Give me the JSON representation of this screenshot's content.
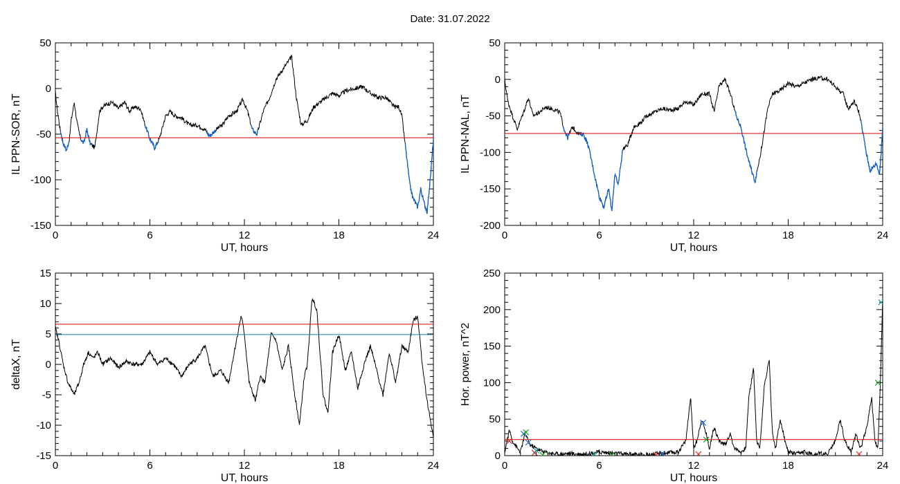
{
  "page": {
    "date_label": "Date:",
    "date_value": "31.07.2022"
  },
  "colors": {
    "threshold": "#d40000",
    "threshold2": "#1e7fa0",
    "dip": "#1060c8",
    "line": "#000000",
    "marker_red": "#e02020",
    "marker_blue": "#1e6fd0",
    "marker_green": "#20a020",
    "marker_cyan": "#20a0a0"
  },
  "chart_data": [
    {
      "id": "sor",
      "type": "line",
      "xlabel": "UT, hours",
      "ylabel": "IL PPN-SOR, nT",
      "xlim": [
        0,
        24
      ],
      "ylim": [
        -150,
        50
      ],
      "xticks": [
        "0",
        "6",
        "12",
        "18",
        "24"
      ],
      "yticks": [
        "50",
        "0",
        "-50",
        "-100",
        "-150"
      ],
      "threshold": -54,
      "x": [
        0,
        0.1,
        0.3,
        0.5,
        0.7,
        0.9,
        1.0,
        1.2,
        1.4,
        1.6,
        1.8,
        2.0,
        2.2,
        2.5,
        2.8,
        3.0,
        3.3,
        3.6,
        4.0,
        4.4,
        4.7,
        5.0,
        5.4,
        5.7,
        6.0,
        6.3,
        6.6,
        7.0,
        7.3,
        7.6,
        8.0,
        8.5,
        9.0,
        9.5,
        9.8,
        10.2,
        10.6,
        11.0,
        11.5,
        11.9,
        12.2,
        12.5,
        12.8,
        13.2,
        13.6,
        14.0,
        14.4,
        14.8,
        15.0,
        15.3,
        15.6,
        16.0,
        16.4,
        16.8,
        17.2,
        17.6,
        18.0,
        18.5,
        19.0,
        19.5,
        20.0,
        20.5,
        21.0,
        21.5,
        21.8,
        22.0,
        22.3,
        22.5,
        22.7,
        23.0,
        23.2,
        23.4,
        23.6,
        23.8,
        24.0
      ],
      "y": [
        -5,
        -20,
        -45,
        -60,
        -68,
        -55,
        -35,
        -15,
        -40,
        -55,
        -60,
        -45,
        -60,
        -65,
        -25,
        -20,
        -17,
        -15,
        -22,
        -15,
        -25,
        -20,
        -22,
        -40,
        -55,
        -65,
        -55,
        -30,
        -25,
        -30,
        -32,
        -40,
        -40,
        -45,
        -52,
        -45,
        -40,
        -30,
        -25,
        -12,
        -25,
        -45,
        -50,
        -25,
        -10,
        10,
        20,
        30,
        35,
        -10,
        -40,
        -35,
        -20,
        -15,
        -10,
        -5,
        -8,
        -2,
        0,
        2,
        -5,
        -10,
        -10,
        -20,
        -20,
        -30,
        -75,
        -105,
        -120,
        -130,
        -110,
        -125,
        -135,
        -100,
        -55
      ],
      "dips": [
        [
          0.3,
          0.9
        ],
        [
          1.6,
          2.3
        ],
        [
          5.7,
          6.5
        ],
        [
          9.6,
          10.2
        ],
        [
          12.4,
          12.9
        ],
        [
          22.2,
          24.0
        ]
      ]
    },
    {
      "id": "nal",
      "type": "line",
      "xlabel": "UT, hours",
      "ylabel": "IL PPN-NAL, nT",
      "xlim": [
        0,
        24
      ],
      "ylim": [
        -200,
        50
      ],
      "xticks": [
        "0",
        "6",
        "12",
        "18",
        "24"
      ],
      "yticks": [
        "50",
        "0",
        "-50",
        "-100",
        "-150",
        "-200"
      ],
      "threshold": -74,
      "x": [
        0,
        0.2,
        0.5,
        0.8,
        1.2,
        1.5,
        1.8,
        2.2,
        2.6,
        3.0,
        3.5,
        3.8,
        4.0,
        4.3,
        4.7,
        5.0,
        5.3,
        5.6,
        6.0,
        6.3,
        6.6,
        6.8,
        7.0,
        7.2,
        7.5,
        7.8,
        8.2,
        8.6,
        9.0,
        9.5,
        10.0,
        10.5,
        11.0,
        11.5,
        12.0,
        12.5,
        13.0,
        13.3,
        13.6,
        14.0,
        14.4,
        14.7,
        15.0,
        15.3,
        15.6,
        15.9,
        16.3,
        16.7,
        17.0,
        17.5,
        18.0,
        18.5,
        19.0,
        19.5,
        20.0,
        20.5,
        21.0,
        21.5,
        21.8,
        22.2,
        22.5,
        22.8,
        23.0,
        23.2,
        23.4,
        23.6,
        23.8,
        24.0
      ],
      "y": [
        0,
        -30,
        -50,
        -68,
        -45,
        -25,
        -50,
        -45,
        -38,
        -40,
        -45,
        -70,
        -80,
        -65,
        -75,
        -75,
        -90,
        -120,
        -160,
        -175,
        -150,
        -180,
        -130,
        -145,
        -95,
        -90,
        -65,
        -60,
        -50,
        -45,
        -40,
        -42,
        -40,
        -30,
        -35,
        -20,
        -20,
        -45,
        -10,
        0,
        -25,
        -50,
        -65,
        -95,
        -120,
        -140,
        -95,
        -40,
        -20,
        -15,
        -5,
        -10,
        -5,
        0,
        2,
        0,
        -10,
        -20,
        -40,
        -30,
        -45,
        -80,
        -105,
        -125,
        -120,
        -115,
        -130,
        -65
      ],
      "dips": [
        [
          3.7,
          4.1
        ],
        [
          4.8,
          7.5
        ],
        [
          14.6,
          16.0
        ],
        [
          22.6,
          24.0
        ]
      ]
    },
    {
      "id": "deltax",
      "type": "line",
      "xlabel": "UT, hours",
      "ylabel": "deltaX, nT",
      "xlim": [
        0,
        24
      ],
      "ylim": [
        -15,
        15
      ],
      "xticks": [
        "0",
        "6",
        "12",
        "18",
        "24"
      ],
      "yticks": [
        "15",
        "10",
        "5",
        "0",
        "-5",
        "-10",
        "-15"
      ],
      "thresholds": [
        6.6,
        4.9
      ],
      "x": [
        0,
        0.2,
        0.5,
        0.8,
        1.2,
        1.5,
        1.8,
        2.1,
        2.4,
        2.7,
        3.0,
        3.5,
        4.0,
        4.5,
        5.0,
        5.5,
        6.0,
        6.5,
        7.0,
        7.5,
        8.0,
        8.5,
        9.0,
        9.5,
        10.0,
        10.5,
        11.0,
        11.5,
        11.8,
        12.0,
        12.3,
        12.7,
        13.0,
        13.3,
        13.7,
        14.0,
        14.4,
        14.8,
        15.2,
        15.5,
        15.8,
        16.0,
        16.3,
        16.6,
        17.0,
        17.3,
        17.6,
        18.0,
        18.4,
        18.8,
        19.2,
        19.6,
        20.0,
        20.4,
        20.8,
        21.2,
        21.6,
        22.0,
        22.4,
        22.7,
        23.0,
        23.3,
        23.6,
        24.0
      ],
      "y": [
        6,
        4,
        0,
        -3,
        -5,
        -3,
        0,
        2,
        1,
        2,
        0,
        1,
        -0.5,
        0.5,
        0,
        0,
        2,
        0,
        1,
        0,
        -2,
        0,
        1,
        3,
        -2,
        -1,
        -3,
        4,
        8,
        5,
        -3,
        -6,
        -2,
        -3,
        5,
        4,
        -1,
        3,
        -5,
        -10,
        -2,
        0,
        11,
        9,
        -5,
        -8,
        2,
        5,
        -1,
        2,
        -4,
        0,
        3,
        -1,
        -5,
        2,
        -3,
        3,
        2,
        7,
        8,
        0,
        -6,
        -12
      ]
    },
    {
      "id": "power",
      "type": "line",
      "xlabel": "UT, hours",
      "ylabel": "Hor. power, nT^2",
      "xlim": [
        0,
        24
      ],
      "ylim": [
        0,
        250
      ],
      "xticks": [
        "0",
        "6",
        "12",
        "18",
        "24"
      ],
      "yticks": [
        "250",
        "200",
        "150",
        "100",
        "50",
        "0"
      ],
      "threshold": 22,
      "x": [
        0,
        0.3,
        0.5,
        0.8,
        1.0,
        1.3,
        1.6,
        2.0,
        2.5,
        3.0,
        3.5,
        4.0,
        5.0,
        6.0,
        7.0,
        8.0,
        9.0,
        10.0,
        11.0,
        11.5,
        11.8,
        12.0,
        12.2,
        12.5,
        12.8,
        13.0,
        13.3,
        13.6,
        14.0,
        14.3,
        14.6,
        15.0,
        15.3,
        15.5,
        15.8,
        16.0,
        16.2,
        16.5,
        16.8,
        17.0,
        17.2,
        17.5,
        17.8,
        18.0,
        18.5,
        19.0,
        19.5,
        20.0,
        20.5,
        21.0,
        21.3,
        21.6,
        22.0,
        22.3,
        22.6,
        23.0,
        23.3,
        23.5,
        23.7,
        23.85,
        24.0
      ],
      "y": [
        5,
        35,
        20,
        10,
        5,
        30,
        15,
        10,
        5,
        3,
        2,
        3,
        2,
        5,
        3,
        2,
        1,
        3,
        5,
        20,
        80,
        10,
        20,
        50,
        30,
        10,
        40,
        20,
        15,
        30,
        10,
        5,
        10,
        80,
        120,
        20,
        10,
        100,
        130,
        30,
        10,
        50,
        20,
        5,
        2,
        5,
        2,
        3,
        2,
        20,
        50,
        20,
        5,
        30,
        10,
        40,
        80,
        20,
        10,
        100,
        215
      ],
      "markers": [
        {
          "x": 0.3,
          "y": 20,
          "c": "marker_red"
        },
        {
          "x": 1.2,
          "y": 30,
          "c": "marker_blue"
        },
        {
          "x": 1.35,
          "y": 32,
          "c": "marker_green"
        },
        {
          "x": 1.5,
          "y": 18,
          "c": "marker_blue"
        },
        {
          "x": 1.9,
          "y": 4,
          "c": "marker_red"
        },
        {
          "x": 2.0,
          "y": 7,
          "c": "marker_cyan"
        },
        {
          "x": 2.4,
          "y": 1,
          "c": "marker_green"
        },
        {
          "x": 5.7,
          "y": 2,
          "c": "marker_cyan"
        },
        {
          "x": 6.8,
          "y": 1,
          "c": "marker_green"
        },
        {
          "x": 9.6,
          "y": 1,
          "c": "marker_red"
        },
        {
          "x": 10.0,
          "y": 3,
          "c": "marker_blue"
        },
        {
          "x": 12.3,
          "y": 2,
          "c": "marker_red"
        },
        {
          "x": 12.6,
          "y": 45,
          "c": "marker_blue"
        },
        {
          "x": 12.8,
          "y": 22,
          "c": "marker_green"
        },
        {
          "x": 22.5,
          "y": 2,
          "c": "marker_red"
        },
        {
          "x": 23.7,
          "y": 100,
          "c": "marker_green"
        },
        {
          "x": 23.9,
          "y": 210,
          "c": "marker_cyan"
        }
      ]
    }
  ]
}
